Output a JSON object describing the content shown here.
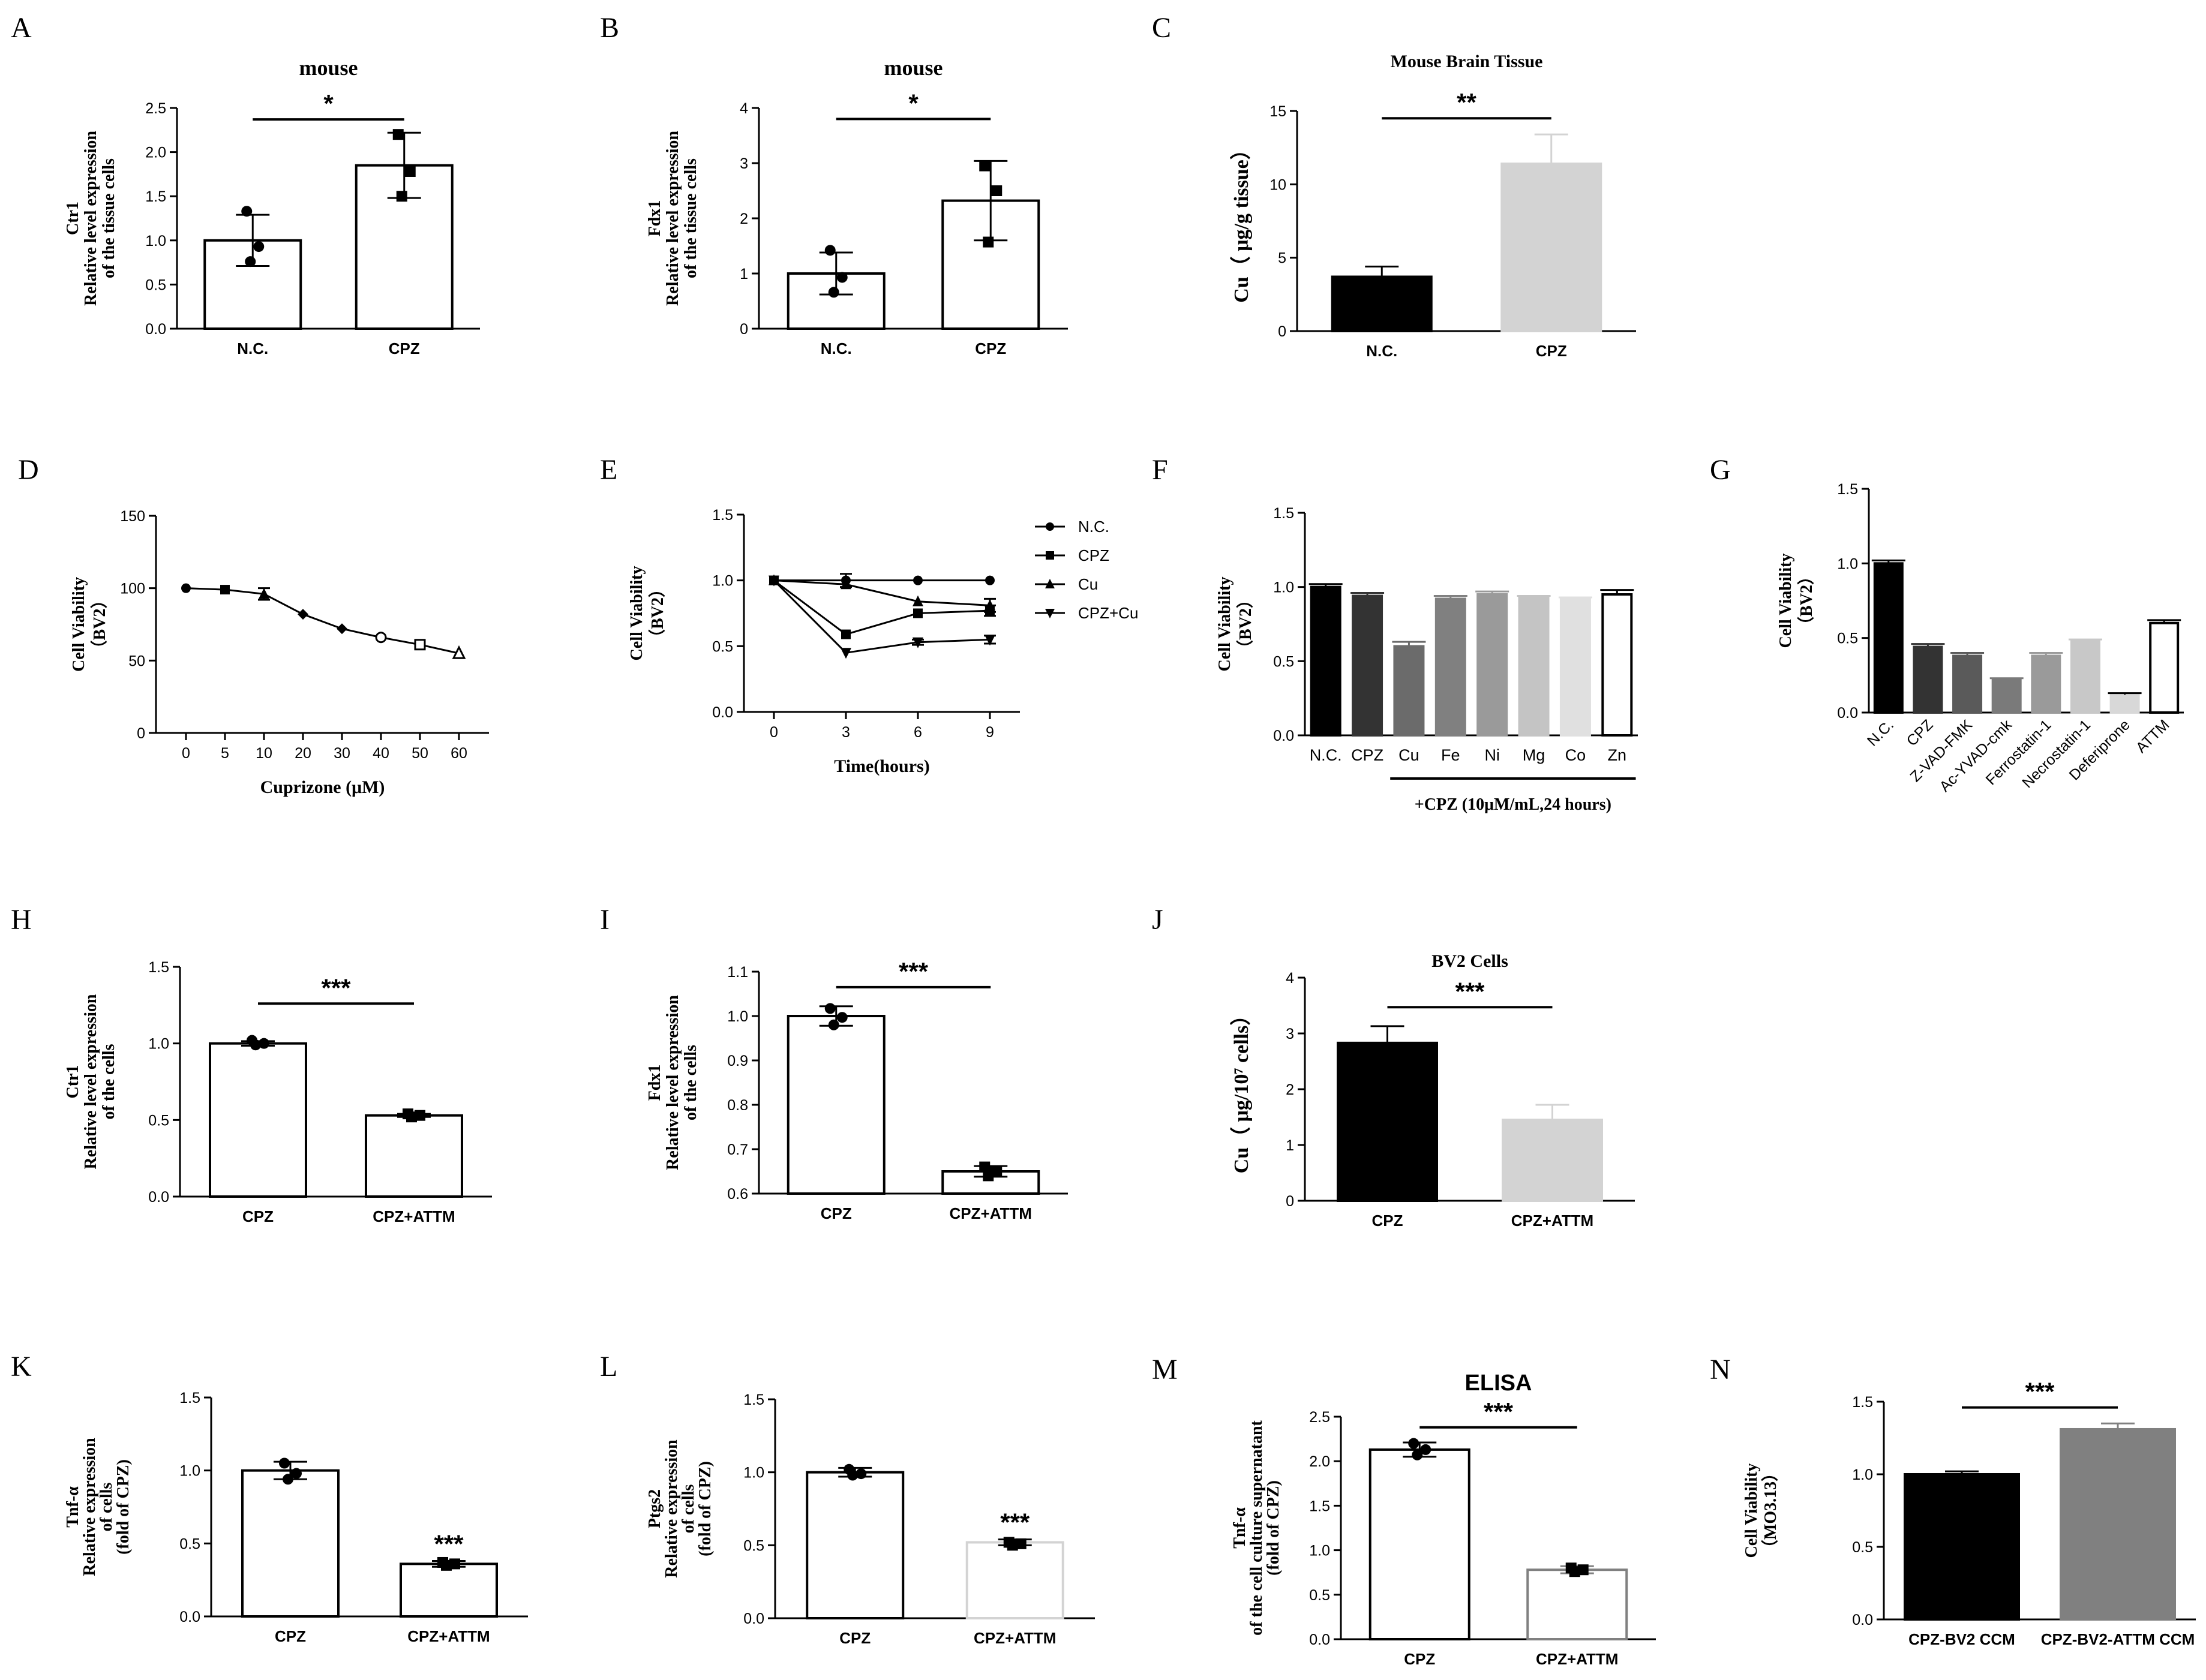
{
  "figure_title": "Multi-panel figure",
  "chart_data": [
    {
      "id": "A",
      "type": "bar",
      "panel_label": "A",
      "title": "mouse",
      "ylabel_lines": [
        "Ctr1",
        "Relative level expression",
        "of the tissue cells"
      ],
      "categories": [
        "N.C.",
        "CPZ"
      ],
      "values": [
        1.0,
        1.85
      ],
      "errors": [
        0.29,
        0.37
      ],
      "bar_colors": [
        "#ffffff",
        "#ffffff"
      ],
      "err_colors": [
        "#000000",
        "#000000"
      ],
      "points": [
        [
          1.33,
          0.93,
          0.76
        ],
        [
          2.2,
          1.78,
          1.5
        ]
      ],
      "point_shapes": [
        "circle",
        "square"
      ],
      "ylim": [
        0,
        2.5
      ],
      "yticks": [
        0,
        0.5,
        1.0,
        1.5,
        2.0,
        2.5
      ],
      "tick_decimals": 1,
      "significance": [
        {
          "from": 0,
          "to": 1,
          "label": "*",
          "level": 2.37
        }
      ]
    },
    {
      "id": "B",
      "type": "bar",
      "panel_label": "B",
      "title": "mouse",
      "ylabel_lines": [
        "Fdx1",
        "Relative level expression",
        "of the tissue cells"
      ],
      "categories": [
        "N.C.",
        "CPZ"
      ],
      "values": [
        1.0,
        2.32
      ],
      "errors": [
        0.38,
        0.72
      ],
      "bar_colors": [
        "#ffffff",
        "#ffffff"
      ],
      "err_colors": [
        "#000000",
        "#000000"
      ],
      "points": [
        [
          1.42,
          0.93,
          0.66
        ],
        [
          2.95,
          2.5,
          1.57
        ]
      ],
      "point_shapes": [
        "circle",
        "square"
      ],
      "ylim": [
        0,
        4
      ],
      "yticks": [
        0,
        1,
        2,
        3,
        4
      ],
      "tick_decimals": 0,
      "significance": [
        {
          "from": 0,
          "to": 1,
          "label": "*",
          "level": 3.8
        }
      ]
    },
    {
      "id": "C",
      "type": "bar",
      "panel_label": "C",
      "title": "Mouse Brain Tissue",
      "ylabel_lines": [
        "Cu（ μg/g tissue）"
      ],
      "categories": [
        "N.C.",
        "CPZ"
      ],
      "values": [
        3.7,
        11.4
      ],
      "errors": [
        0.7,
        2.0
      ],
      "bar_colors": [
        "#000000",
        "#d3d3d3"
      ],
      "err_colors": [
        "#000000",
        "#d3d3d3"
      ],
      "points": [
        [],
        []
      ],
      "point_shapes": [
        "none",
        "none"
      ],
      "ylim": [
        0,
        15
      ],
      "yticks": [
        0,
        5,
        10,
        15
      ],
      "tick_decimals": 0,
      "significance": [
        {
          "from": 0,
          "to": 1,
          "label": "**",
          "level": 14.5
        }
      ]
    },
    {
      "id": "D",
      "type": "line",
      "panel_label": "D",
      "ylabel_lines": [
        "Cell Viability",
        "（BV2）"
      ],
      "xlabel": "Cuprizone (μM)",
      "x": [
        0,
        5,
        10,
        20,
        30,
        40,
        50,
        60
      ],
      "x_positions": [
        0,
        1,
        2,
        3,
        4,
        5,
        6,
        7
      ],
      "xticks": [
        "0",
        "5",
        "10",
        "20",
        "30",
        "40",
        "50",
        "60"
      ],
      "series": [
        {
          "name": "BV2",
          "values": [
            100,
            99,
            96,
            82,
            72,
            66,
            61,
            55
          ],
          "errors": [
            0,
            0,
            4,
            0,
            0,
            0,
            0,
            0
          ],
          "markers": [
            "circle",
            "square",
            "triangle",
            "diamond",
            "diamond",
            "circle-open",
            "square-open",
            "triangle-open"
          ]
        }
      ],
      "ylim": [
        0,
        150
      ],
      "yticks": [
        0,
        50,
        100,
        150
      ],
      "tick_decimals": 0
    },
    {
      "id": "E",
      "type": "line",
      "panel_label": "E",
      "ylabel_lines": [
        "Cell Viability",
        "（BV2）"
      ],
      "xlabel": "Time(hours)",
      "x": [
        0,
        3,
        6,
        9
      ],
      "x_positions": [
        0,
        1,
        2,
        3
      ],
      "xticks": [
        "0",
        "3",
        "6",
        "9"
      ],
      "series": [
        {
          "name": "N.C.",
          "marker": "circle",
          "values": [
            1.0,
            1.0,
            1.0,
            1.0
          ],
          "errors": [
            0,
            0.05,
            0,
            0
          ]
        },
        {
          "name": "CPZ",
          "marker": "square",
          "values": [
            1.0,
            0.59,
            0.75,
            0.77
          ],
          "errors": [
            0,
            0,
            0,
            0.04
          ]
        },
        {
          "name": "Cu",
          "marker": "triangle",
          "values": [
            1.0,
            0.97,
            0.84,
            0.81
          ],
          "errors": [
            0,
            0,
            0,
            0.05
          ]
        },
        {
          "name": "CPZ+Cu",
          "marker": "triangle-down",
          "values": [
            1.0,
            0.45,
            0.53,
            0.55
          ],
          "errors": [
            0,
            0,
            0.02,
            0.03
          ]
        }
      ],
      "legend_position": "right",
      "ylim": [
        0,
        1.5
      ],
      "yticks": [
        0,
        0.5,
        1.0,
        1.5
      ],
      "tick_decimals": 1
    },
    {
      "id": "F",
      "type": "bar",
      "panel_label": "F",
      "ylabel_lines": [
        "Cell Viability",
        "（BV2）"
      ],
      "categories": [
        "N.C.",
        "CPZ",
        "Cu",
        "Fe",
        "Ni",
        "Mg",
        "Co",
        "Zn"
      ],
      "values": [
        1.0,
        0.94,
        0.6,
        0.92,
        0.95,
        0.93,
        0.92,
        0.95
      ],
      "errors": [
        0.02,
        0.02,
        0.03,
        0.02,
        0.02,
        0.01,
        0.01,
        0.03
      ],
      "bar_colors": [
        "#000000",
        "#333333",
        "#6b6b6b",
        "#808080",
        "#9a9a9a",
        "#c4c4c4",
        "#e0e0e0",
        "#ffffff"
      ],
      "err_colors": [
        "#000000",
        "#333333",
        "#6b6b6b",
        "#808080",
        "#9a9a9a",
        "#c4c4c4",
        "#e0e0e0",
        "#000000"
      ],
      "points": [
        [],
        [],
        [],
        [],
        [],
        [],
        [],
        []
      ],
      "point_shapes": [],
      "ylim": [
        0,
        1.5
      ],
      "yticks": [
        0,
        0.5,
        1.0,
        1.5
      ],
      "tick_decimals": 1,
      "bracket_label": "+CPZ (10μM/mL,24 hours)",
      "bracket_from": 2,
      "bracket_to": 7,
      "significance": []
    },
    {
      "id": "G",
      "type": "bar",
      "panel_label": "G",
      "ylabel_lines": [
        "Cell Viability",
        "（BV2）"
      ],
      "categories": [
        "N.C.",
        "CPZ",
        "Z-VAD-FMK",
        "Ac-YVAD-cmk",
        "Ferrostatin-1",
        "Necrostatin-1",
        "Deferiprone",
        "ATTM"
      ],
      "values": [
        1.0,
        0.44,
        0.38,
        0.22,
        0.38,
        0.48,
        0.12,
        0.6
      ],
      "errors": [
        0.02,
        0.02,
        0.02,
        0.01,
        0.02,
        0.01,
        0.01,
        0.02
      ],
      "bar_colors": [
        "#000000",
        "#333333",
        "#5a5a5a",
        "#7a7a7a",
        "#9a9a9a",
        "#c8c8c8",
        "#d8d8d8",
        "#ffffff"
      ],
      "err_colors": [
        "#000000",
        "#333333",
        "#5a5a5a",
        "#7a7a7a",
        "#9a9a9a",
        "#c8c8c8",
        "#000000",
        "#000000"
      ],
      "points": [
        [],
        [],
        [],
        [],
        [],
        [],
        [],
        []
      ],
      "point_shapes": [],
      "rotated_ticks": true,
      "ylim": [
        0,
        1.5
      ],
      "yticks": [
        0,
        0.5,
        1.0,
        1.5
      ],
      "tick_decimals": 1,
      "significance": []
    },
    {
      "id": "H",
      "type": "bar",
      "panel_label": "H",
      "ylabel_lines": [
        "Ctr1",
        "Relative level expression",
        "of the cells"
      ],
      "categories": [
        "CPZ",
        "CPZ+ATTM"
      ],
      "values": [
        1.0,
        0.53
      ],
      "errors": [
        0.015,
        0.01
      ],
      "bar_colors": [
        "#ffffff",
        "#ffffff"
      ],
      "err_colors": [
        "#000000",
        "#000000"
      ],
      "points": [
        [
          1.02,
          1.0,
          0.99
        ],
        [
          0.54,
          0.53,
          0.52
        ]
      ],
      "point_shapes": [
        "circle",
        "square"
      ],
      "ylim": [
        0,
        1.5
      ],
      "yticks": [
        0,
        0.5,
        1.0,
        1.5
      ],
      "tick_decimals": 1,
      "significance": [
        {
          "from": 0,
          "to": 1,
          "label": "***",
          "level": 1.26
        }
      ]
    },
    {
      "id": "I",
      "type": "bar",
      "panel_label": "I",
      "ylabel_lines": [
        "Fdx1",
        "Relative level expression",
        "of the cells"
      ],
      "categories": [
        "CPZ",
        "CPZ+ATTM"
      ],
      "values": [
        1.0,
        0.65
      ],
      "errors": [
        0.022,
        0.012
      ],
      "bar_colors": [
        "#ffffff",
        "#ffffff"
      ],
      "err_colors": [
        "#000000",
        "#000000"
      ],
      "points": [
        [
          1.017,
          0.997,
          0.98
        ],
        [
          0.66,
          0.65,
          0.64
        ]
      ],
      "point_shapes": [
        "circle",
        "square"
      ],
      "ylim": [
        0.6,
        1.1
      ],
      "yticks": [
        0.6,
        0.7,
        0.8,
        0.9,
        1.0,
        1.1
      ],
      "tick_decimals": 1,
      "significance": [
        {
          "from": 0,
          "to": 1,
          "label": "***",
          "level": 1.065
        }
      ]
    },
    {
      "id": "J",
      "type": "bar",
      "panel_label": "J",
      "title": "BV2 Cells",
      "ylabel_lines": [
        "Cu（  μg/10⁷ cells）"
      ],
      "categories": [
        "CPZ",
        "CPZ+ATTM"
      ],
      "values": [
        2.83,
        1.45
      ],
      "errors": [
        0.3,
        0.27
      ],
      "bar_colors": [
        "#000000",
        "#d3d3d3"
      ],
      "err_colors": [
        "#000000",
        "#d3d3d3"
      ],
      "points": [
        [],
        []
      ],
      "point_shapes": [
        "none",
        "none"
      ],
      "ylim": [
        0,
        4
      ],
      "yticks": [
        0,
        1,
        2,
        3,
        4
      ],
      "tick_decimals": 0,
      "significance": [
        {
          "from": 0,
          "to": 1,
          "label": "***",
          "level": 3.47
        }
      ]
    },
    {
      "id": "K",
      "type": "bar",
      "panel_label": "K",
      "ylabel_lines": [
        "Tnf-α",
        "Relative expression",
        "of cells",
        "(fold of CPZ)"
      ],
      "categories": [
        "CPZ",
        "CPZ+ATTM"
      ],
      "values": [
        1.0,
        0.36
      ],
      "errors": [
        0.06,
        0.02
      ],
      "bar_colors": [
        "#ffffff",
        "#ffffff"
      ],
      "err_colors": [
        "#000000",
        "#000000"
      ],
      "points": [
        [
          1.05,
          0.98,
          0.94
        ],
        [
          0.37,
          0.36,
          0.35
        ]
      ],
      "point_shapes": [
        "circle",
        "square"
      ],
      "ylim": [
        0,
        1.5
      ],
      "yticks": [
        0,
        0.5,
        1.0,
        1.5
      ],
      "tick_decimals": 1,
      "star_labels": [
        {
          "index": 1,
          "label": "***"
        }
      ],
      "significance": []
    },
    {
      "id": "L",
      "type": "bar",
      "panel_label": "L",
      "ylabel_lines": [
        "Ptgs2",
        "Relative expression",
        "of cells",
        "(fold of CPZ)"
      ],
      "categories": [
        "CPZ",
        "CPZ+ATTM"
      ],
      "values": [
        1.0,
        0.52
      ],
      "errors": [
        0.03,
        0.02
      ],
      "bar_colors": [
        "#ffffff",
        "#ffffff"
      ],
      "err_colors": [
        "#000000",
        "#000000"
      ],
      "bar_strokes": [
        "#000000",
        "#d3d3d3"
      ],
      "points": [
        [
          1.02,
          0.99,
          0.98
        ],
        [
          0.52,
          0.51,
          0.5
        ]
      ],
      "point_shapes": [
        "circle",
        "square"
      ],
      "ylim": [
        0,
        1.5
      ],
      "yticks": [
        0,
        0.5,
        1.0,
        1.5
      ],
      "tick_decimals": 1,
      "star_labels": [
        {
          "index": 1,
          "label": "***"
        }
      ],
      "significance": []
    },
    {
      "id": "M",
      "type": "bar",
      "panel_label": "M",
      "title": "ELISA",
      "title_style": "bold-sans",
      "ylabel_lines": [
        "Tnf-α",
        "of the cell culture supernatant",
        "(fold of CPZ)"
      ],
      "categories": [
        "CPZ",
        "CPZ+ATTM"
      ],
      "values": [
        2.13,
        0.78
      ],
      "errors": [
        0.08,
        0.04
      ],
      "bar_colors": [
        "#ffffff",
        "#ffffff"
      ],
      "err_colors": [
        "#000000",
        "#808080"
      ],
      "bar_strokes": [
        "#000000",
        "#808080"
      ],
      "points": [
        [
          2.2,
          2.13,
          2.07
        ],
        [
          0.8,
          0.78,
          0.76
        ]
      ],
      "point_shapes": [
        "circle",
        "square"
      ],
      "ylim": [
        0,
        2.5
      ],
      "yticks": [
        0,
        0.5,
        1.0,
        1.5,
        2.0,
        2.5
      ],
      "tick_decimals": 1,
      "significance": [
        {
          "from": 0,
          "to": 1,
          "label": "***",
          "level": 2.38
        }
      ]
    },
    {
      "id": "N",
      "type": "bar",
      "panel_label": "N",
      "ylabel_lines": [
        "Cell Viability",
        "（MO3.13）"
      ],
      "categories": [
        "CPZ-BV2 CCM",
        "CPZ-BV2-ATTM CCM"
      ],
      "values": [
        1.0,
        1.31
      ],
      "errors": [
        0.02,
        0.04
      ],
      "bar_colors": [
        "#000000",
        "#808080"
      ],
      "err_colors": [
        "#000000",
        "#808080"
      ],
      "points": [
        [],
        []
      ],
      "point_shapes": [
        "none",
        "none"
      ],
      "ylim": [
        0,
        1.5
      ],
      "yticks": [
        0,
        0.5,
        1.0,
        1.5
      ],
      "tick_decimals": 1,
      "significance": [
        {
          "from": 0,
          "to": 1,
          "label": "***",
          "level": 1.46
        }
      ]
    }
  ]
}
